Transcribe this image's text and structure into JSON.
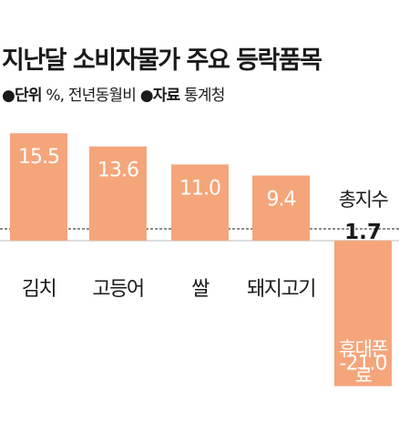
{
  "title": "지난달 소비자물가 주요 등락품목",
  "subtitle": {
    "unit_key": "●단위",
    "unit_value": " %, 전년동월비 ",
    "source_key": "●자료",
    "source_value": " 통계청"
  },
  "colors": {
    "bar": "#f5a57a",
    "bar_label": "#ffffff",
    "text": "#1a1a1a",
    "dashed": "#333333"
  },
  "chart_data": {
    "type": "bar",
    "title": "지난달 소비자물가 주요 등락품목",
    "categories": [
      "김치",
      "고등어",
      "쌀",
      "돼지고기",
      "휴대폰료"
    ],
    "values": [
      15.5,
      13.6,
      11.0,
      9.4,
      -21.0
    ],
    "value_labels": [
      "15.5",
      "13.6",
      "11.0",
      "9.4",
      "-21.0"
    ],
    "category_labels": [
      "김치",
      "고등어",
      "쌀",
      "돼지고기",
      "휴대폰 료"
    ],
    "reference": {
      "label": "총지수",
      "value_label": "1.7",
      "value": 1.7
    },
    "unit": "%",
    "grid": false,
    "legend": "none"
  }
}
